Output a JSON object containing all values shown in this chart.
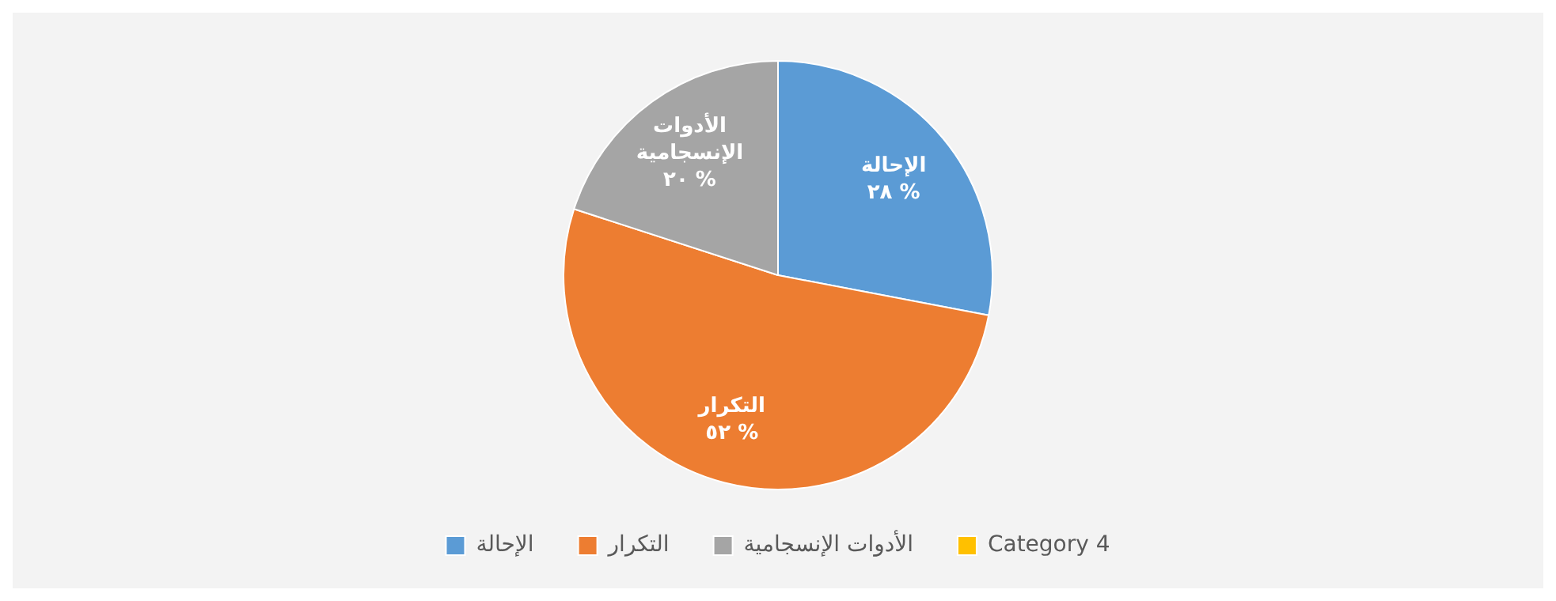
{
  "chart_data": {
    "type": "pie",
    "categories": [
      "الإحالة",
      "التكرار",
      "الأدوات الإنسجامية",
      "Category 4"
    ],
    "values": [
      28,
      52,
      20,
      0
    ],
    "colors": [
      "#5b9bd5",
      "#ed7d31",
      "#a5a5a5",
      "#ffc000"
    ],
    "value_labels": [
      "٢٨ %",
      "٥٢ %",
      "٢٠ %",
      null
    ],
    "legend": "bottom"
  }
}
